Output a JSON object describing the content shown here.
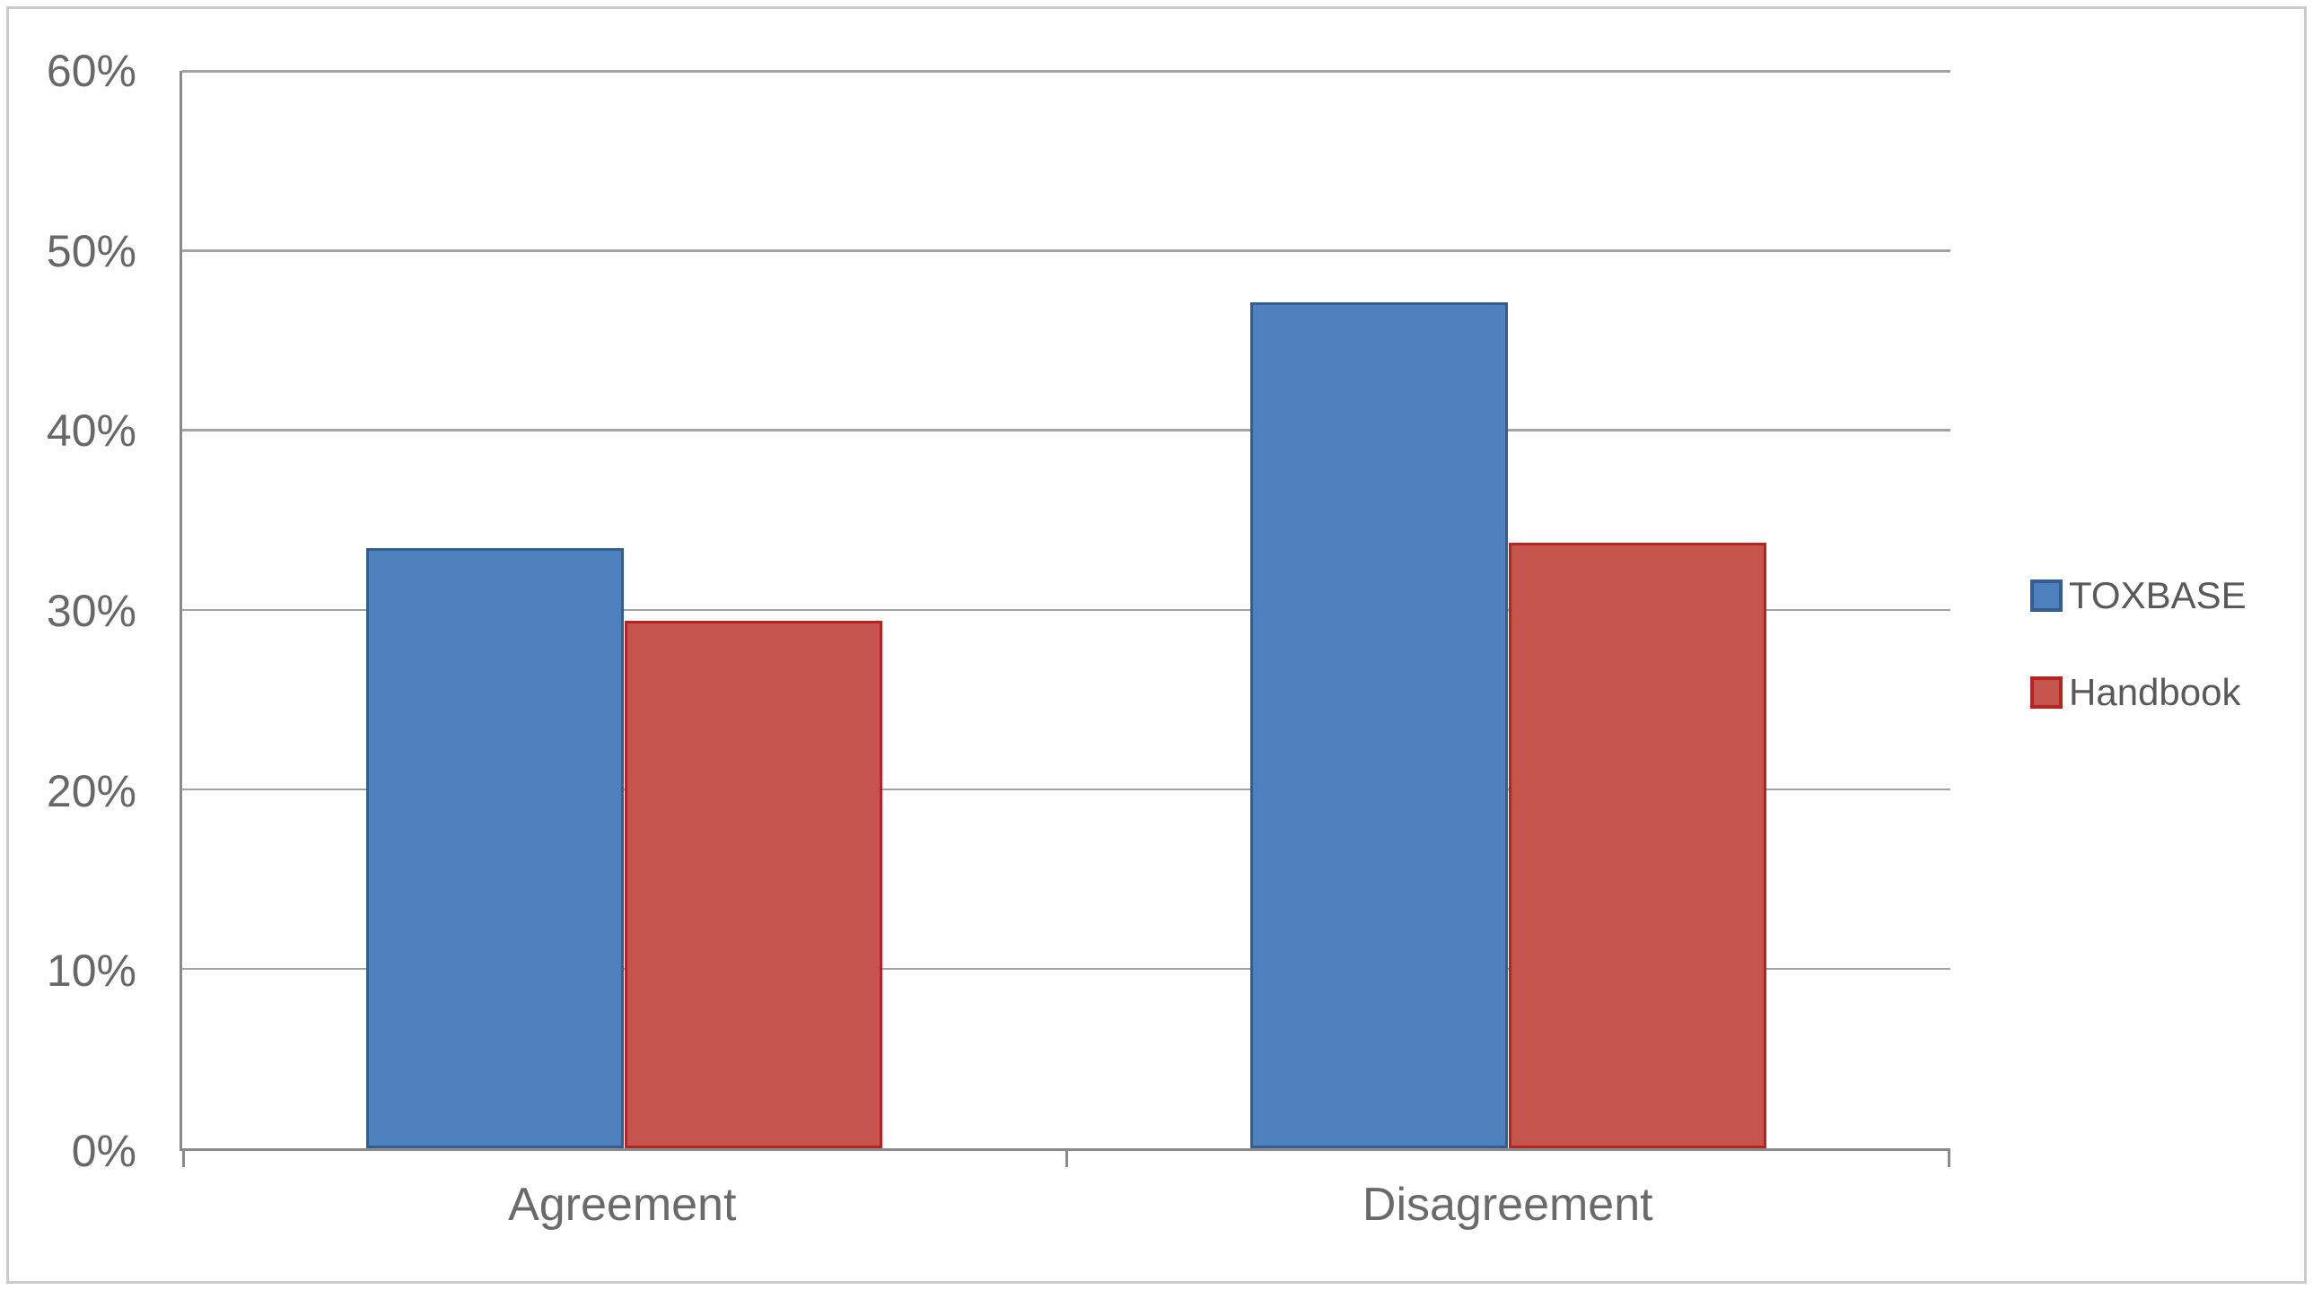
{
  "chart_data": {
    "type": "bar",
    "title": "",
    "categories": [
      "Agreement",
      "Disagreement"
    ],
    "series": [
      {
        "name": "TOXBASE",
        "values": [
          33.4,
          47.1
        ],
        "fill": "#4e80bd",
        "border": "#355e8e"
      },
      {
        "name": "Handbook",
        "values": [
          29.4,
          33.7
        ],
        "fill": "#c5534e",
        "border": "#b42521"
      }
    ],
    "ylabel": "",
    "xlabel": "",
    "ylim": [
      0,
      60
    ],
    "ytick_step": 10,
    "ytick_suffix": "%",
    "ytick_labels": [
      "0%",
      "10%",
      "20%",
      "30%",
      "40%",
      "50%",
      "60%"
    ],
    "grid": true,
    "legend_position": "right",
    "bar_group_left_fraction": 0.208,
    "bar_width_fraction": 0.292
  },
  "colors": {
    "gridline": "#a3a3a3",
    "axis_line": "#8a8a8a",
    "frame_border": "#cbcbcb",
    "y_label_text": "#686868",
    "x_label_text": "#6a6a6a",
    "legend_text": "#595959",
    "background": "#ffffff"
  }
}
